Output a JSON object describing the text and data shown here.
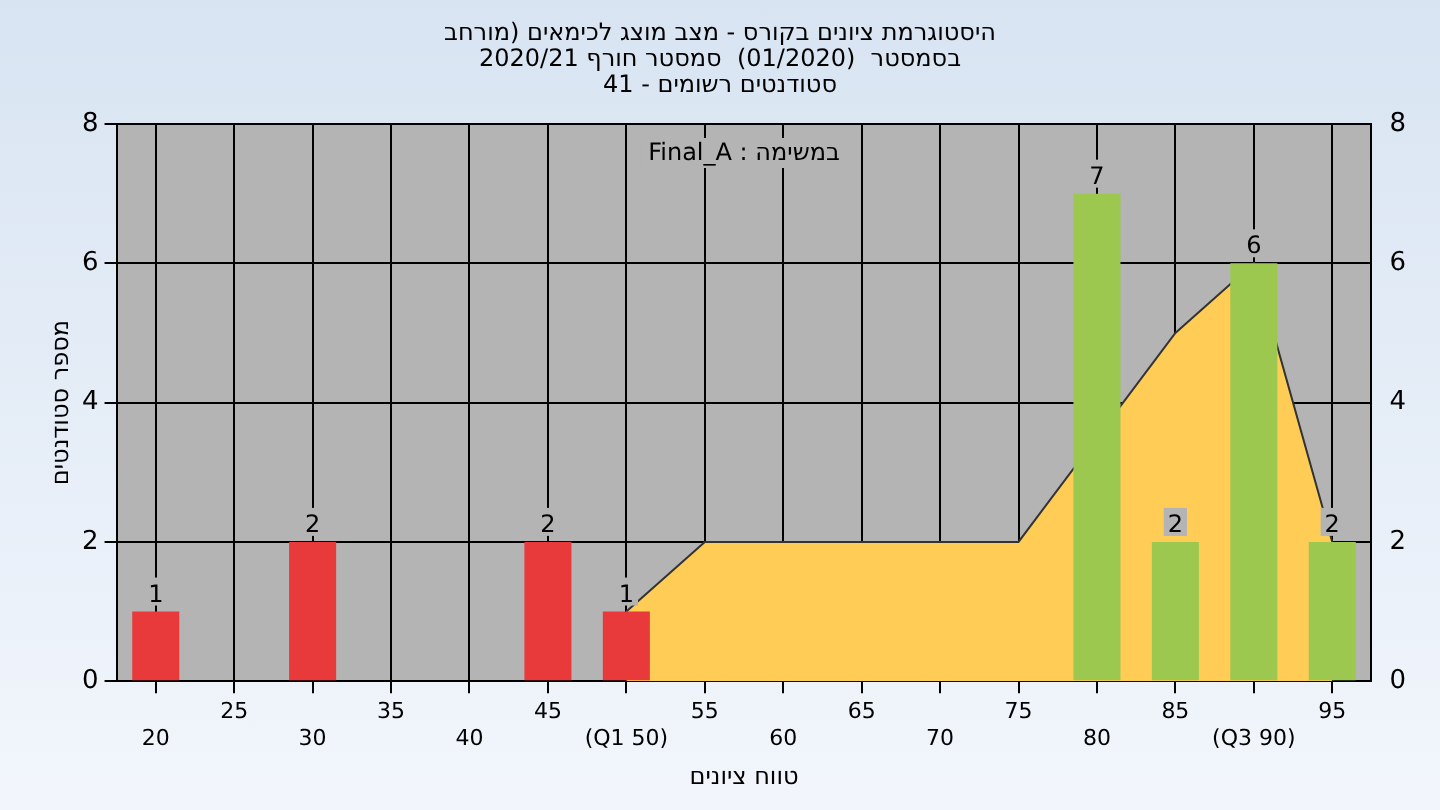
{
  "chart_data": {
    "type": "bar",
    "title": "היסטוגרמת ציונים בקורס - מצב מוצג לכימאים (מורחב\nבסמסטר  (01/2020)  סמסטר חורף 2020/21\nסטודנטים רשומים - 41",
    "annotations": [
      "במשימה : Final_A"
    ],
    "xlabel": "טווח ציונים",
    "ylabel": "מספר סטודנטים",
    "categories": [
      "20",
      "25",
      "30",
      "35",
      "40",
      "45",
      "(Q1 50)",
      "55",
      "60",
      "65",
      "70",
      "75",
      "80",
      "85",
      "(Q3 90)",
      "95"
    ],
    "series": [
      {
        "type": "area",
        "color": "#ffcc55",
        "values": [
          null,
          null,
          null,
          null,
          null,
          null,
          1,
          2,
          2,
          2,
          2,
          2,
          null,
          5,
          6,
          2
        ]
      },
      {
        "colors": [
          "#e83a3a",
          "#e83a3a",
          "#e83a3a",
          "#e83a3a",
          "#e83a3a",
          "#e83a3a",
          "#e83a3a",
          "#9cc850",
          "#9cc850",
          "#9cc850",
          "#9cc850",
          "#9cc850",
          "#9cc850",
          "#9cc850",
          "#9cc850",
          "#9cc850"
        ],
        "values": [
          1,
          null,
          2,
          null,
          null,
          2,
          1,
          null,
          null,
          null,
          null,
          null,
          7,
          2,
          6,
          2
        ],
        "value_labels": [
          "1",
          null,
          "2",
          null,
          null,
          "2",
          "1",
          null,
          null,
          null,
          null,
          null,
          "7",
          "2",
          "6",
          "2"
        ]
      }
    ],
    "ylim": [
      0,
      8
    ],
    "yticks": [
      0,
      2,
      4,
      6,
      8
    ],
    "y2lim": [
      0,
      8
    ],
    "y2ticks": [
      0,
      2,
      4,
      6,
      8
    ],
    "grid": true,
    "legend": false
  }
}
